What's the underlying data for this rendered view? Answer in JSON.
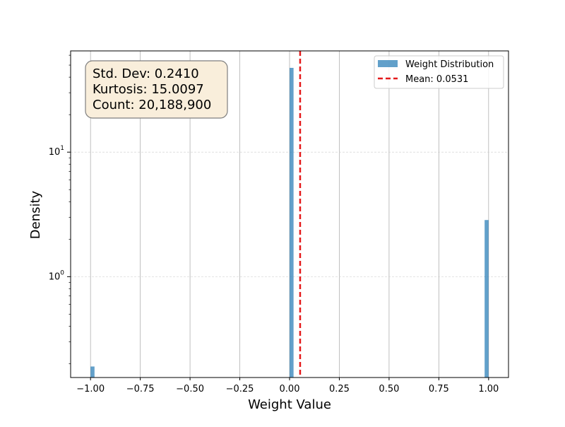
{
  "chart_data": {
    "type": "bar",
    "xlabel": "Weight Value",
    "ylabel": "Density",
    "xlim": [
      -1.1,
      1.1
    ],
    "ylim": [
      0.155,
      65
    ],
    "yscale": "log",
    "grid": "x-major solid, y-major dashed",
    "x_ticks": [
      -1.0,
      -0.75,
      -0.5,
      -0.25,
      0.0,
      0.25,
      0.5,
      0.75,
      1.0
    ],
    "x_tick_labels": [
      "−1.00",
      "−0.75",
      "−0.50",
      "−0.25",
      "0.00",
      "0.25",
      "0.50",
      "0.75",
      "1.00"
    ],
    "y_ticks": [
      1,
      10
    ],
    "series": [
      {
        "name": "Weight Distribution",
        "color": "#1f77b4",
        "opacity": 0.7,
        "bin_width": 0.02,
        "bins": [
          {
            "x": -1.0,
            "value": 0.19
          },
          {
            "x": 0.0,
            "value": 47.5
          },
          {
            "x": 0.98,
            "value": 2.85
          }
        ]
      }
    ],
    "mean_line": {
      "name": "Mean: 0.0531",
      "x": 0.0531,
      "color": "#e41a1c",
      "style": "dashed"
    },
    "legend": {
      "placement": "top-right",
      "entries": [
        "Weight Distribution",
        "Mean: 0.0531"
      ]
    },
    "stats_box": {
      "lines": [
        "Std. Dev: 0.2410",
        "Kurtosis: 15.0097",
        "Count: 20,188,900"
      ],
      "background": "#f9eedb"
    }
  }
}
